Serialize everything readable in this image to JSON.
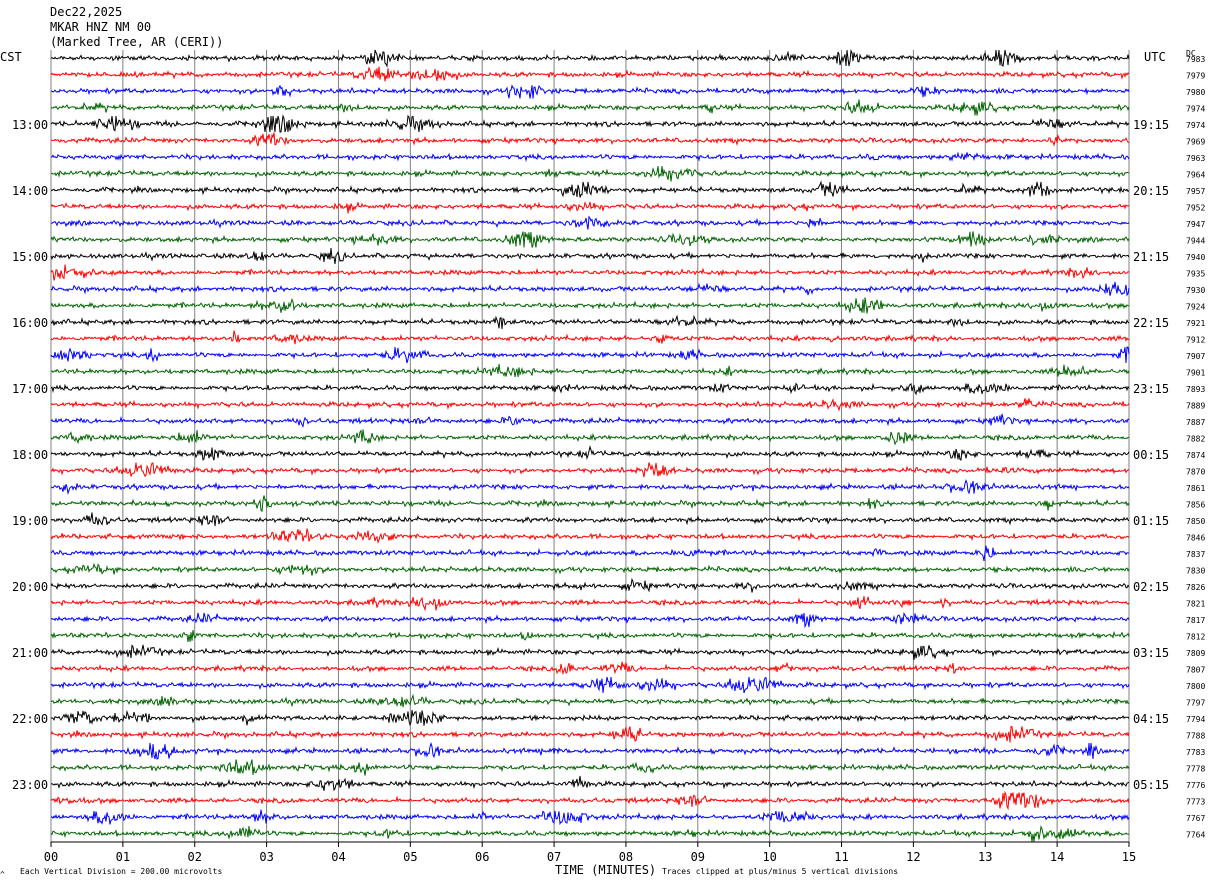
{
  "header": {
    "date": "Dec22,2025",
    "station": "MKAR HNZ NM 00",
    "location": "(Marked Tree, AR (CERI))",
    "left_tz": "CST",
    "right_tz": "UTC",
    "dc_label": "DC"
  },
  "footer": {
    "division_note": "Each Vertical Division =  200.00 microvolts",
    "xlabel": "TIME (MINUTES)",
    "clip_note": "Traces clipped at plus/minus 5 vertical divisions",
    "corner_mark": "^"
  },
  "colors": {
    "trace_cycle": [
      "#000000",
      "#ff0000",
      "#0000ff",
      "#006400"
    ],
    "grid": "#808080"
  },
  "chart_data": {
    "type": "line",
    "xlabel": "TIME (MINUTES)",
    "xlim": [
      0,
      15
    ],
    "x_ticks": [
      "00",
      "01",
      "02",
      "03",
      "04",
      "05",
      "06",
      "07",
      "08",
      "09",
      "10",
      "11",
      "12",
      "13",
      "14",
      "15"
    ],
    "traces_per_hour": 4,
    "minutes_per_trace": 15,
    "left_hour_labels": [
      {
        "row": 4,
        "label": "13:00"
      },
      {
        "row": 8,
        "label": "14:00"
      },
      {
        "row": 12,
        "label": "15:00"
      },
      {
        "row": 16,
        "label": "16:00"
      },
      {
        "row": 20,
        "label": "17:00"
      },
      {
        "row": 24,
        "label": "18:00"
      },
      {
        "row": 28,
        "label": "19:00"
      },
      {
        "row": 32,
        "label": "20:00"
      },
      {
        "row": 36,
        "label": "21:00"
      },
      {
        "row": 40,
        "label": "22:00"
      },
      {
        "row": 44,
        "label": "23:00"
      }
    ],
    "right_hour_labels": [
      {
        "row": 4,
        "label": "19:15"
      },
      {
        "row": 8,
        "label": "20:15"
      },
      {
        "row": 12,
        "label": "21:15"
      },
      {
        "row": 16,
        "label": "22:15"
      },
      {
        "row": 20,
        "label": "23:15"
      },
      {
        "row": 24,
        "label": "00:15"
      },
      {
        "row": 28,
        "label": "01:15"
      },
      {
        "row": 32,
        "label": "02:15"
      },
      {
        "row": 36,
        "label": "03:15"
      },
      {
        "row": 40,
        "label": "04:15"
      },
      {
        "row": 44,
        "label": "05:15"
      }
    ],
    "dc_offsets": [
      "7983",
      "7979",
      "7980",
      "7974",
      "7974",
      "7969",
      "7963",
      "7964",
      "7957",
      "7952",
      "7947",
      "7944",
      "7940",
      "7935",
      "7930",
      "7924",
      "7921",
      "7912",
      "7907",
      "7901",
      "7893",
      "7889",
      "7887",
      "7882",
      "7874",
      "7870",
      "7861",
      "7856",
      "7850",
      "7846",
      "7837",
      "7830",
      "7826",
      "7821",
      "7817",
      "7812",
      "7809",
      "7807",
      "7800",
      "7797",
      "7794",
      "7788",
      "7783",
      "7778",
      "7776",
      "7773",
      "7767",
      "7764"
    ]
  }
}
